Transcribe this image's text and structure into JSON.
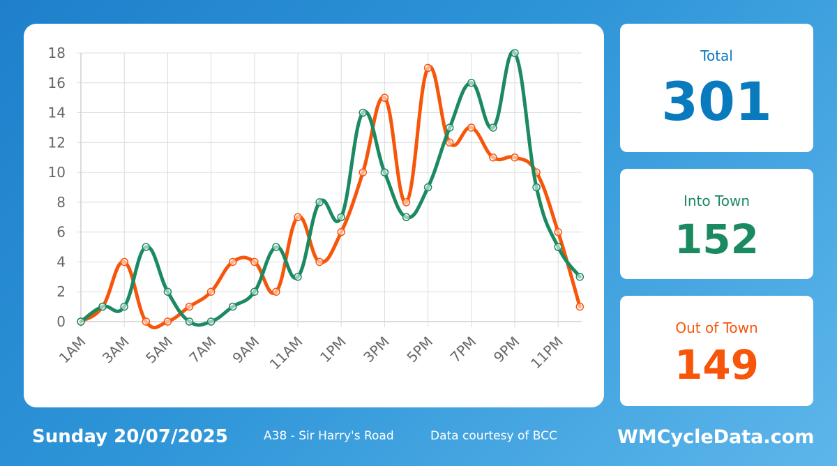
{
  "colors": {
    "total": "#0a7abf",
    "into": "#1b8a60",
    "out": "#f7550a"
  },
  "stats": {
    "total": {
      "label": "Total",
      "value": "301"
    },
    "into": {
      "label": "Into Town",
      "value": "152"
    },
    "out": {
      "label": "Out of Town",
      "value": "149"
    }
  },
  "footer": {
    "date": "Sunday 20/07/2025",
    "location": "A38 - Sir Harry's Road",
    "credit": "Data courtesy of BCC",
    "site": "WMCycleData.com"
  },
  "chart_data": {
    "type": "line",
    "title": "",
    "xlabel": "",
    "ylabel": "",
    "ylim": [
      0,
      18
    ],
    "yticks": [
      0,
      2,
      4,
      6,
      8,
      10,
      12,
      14,
      16,
      18
    ],
    "grid": true,
    "categories": [
      "1AM",
      "2AM",
      "3AM",
      "4AM",
      "5AM",
      "6AM",
      "7AM",
      "8AM",
      "9AM",
      "10AM",
      "11AM",
      "12PM",
      "1PM",
      "2PM",
      "3PM",
      "4PM",
      "5PM",
      "6PM",
      "7PM",
      "8PM",
      "9PM",
      "10PM",
      "11PM",
      "12AM"
    ],
    "tick_labels": [
      "1AM",
      "",
      "3AM",
      "",
      "5AM",
      "",
      "7AM",
      "",
      "9AM",
      "",
      "11AM",
      "",
      "1PM",
      "",
      "3PM",
      "",
      "5PM",
      "",
      "7PM",
      "",
      "9PM",
      "",
      "11PM",
      ""
    ],
    "series": [
      {
        "key": "out",
        "values": [
          0,
          1,
          4,
          0,
          0,
          1,
          2,
          4,
          4,
          2,
          7,
          4,
          6,
          10,
          15,
          8,
          17,
          12,
          13,
          11,
          11,
          10,
          6,
          1
        ]
      },
      {
        "key": "into",
        "values": [
          0,
          1,
          1,
          5,
          2,
          0,
          0,
          1,
          2,
          5,
          3,
          8,
          7,
          14,
          10,
          7,
          9,
          13,
          16,
          13,
          18,
          9,
          5,
          3
        ]
      }
    ]
  }
}
